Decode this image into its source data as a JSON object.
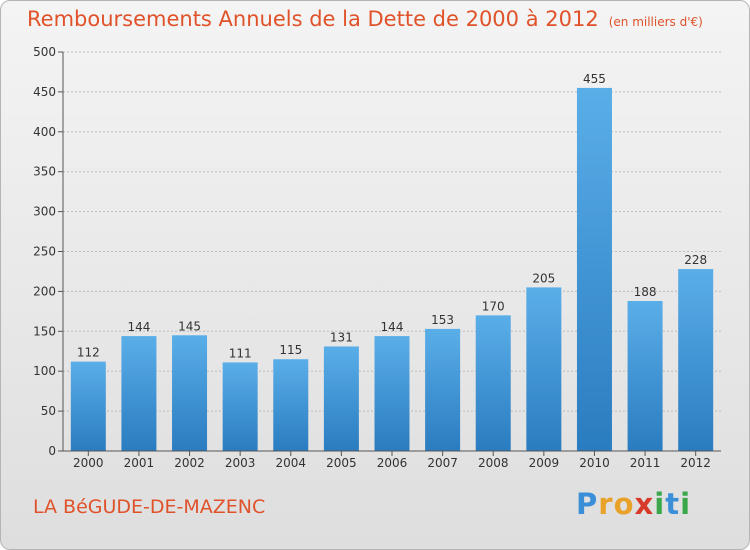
{
  "header": {
    "title": "Remboursements Annuels de la Dette de 2000 à 2012",
    "subtitle": "(en milliers d'€)"
  },
  "footer": {
    "place": "LA BéGUDE-DE-MAZENC",
    "logo_letters": [
      "P",
      "r",
      "o",
      "x",
      "i",
      "t",
      "i"
    ],
    "logo_colors": [
      "#3a8fd8",
      "#e8a22a",
      "#e8a22a",
      "#d83a2a",
      "#3aa84a",
      "#3a8fd8",
      "#3aa84a"
    ]
  },
  "colors": {
    "bar_top": "#5aaee8",
    "bar_bottom": "#2a7cc0",
    "title": "#e0522a"
  },
  "chart_data": {
    "type": "bar",
    "title": "Remboursements Annuels de la Dette de 2000 à 2012",
    "categories": [
      "2000",
      "2001",
      "2002",
      "2003",
      "2004",
      "2005",
      "2006",
      "2007",
      "2008",
      "2009",
      "2010",
      "2011",
      "2012"
    ],
    "values": [
      112,
      144,
      145,
      111,
      115,
      131,
      144,
      153,
      170,
      205,
      455,
      188,
      228
    ],
    "ylim": [
      0,
      500
    ],
    "yticks": [
      0,
      50,
      100,
      150,
      200,
      250,
      300,
      350,
      400,
      450,
      500
    ],
    "grid": true,
    "xlabel": "",
    "ylabel": ""
  }
}
